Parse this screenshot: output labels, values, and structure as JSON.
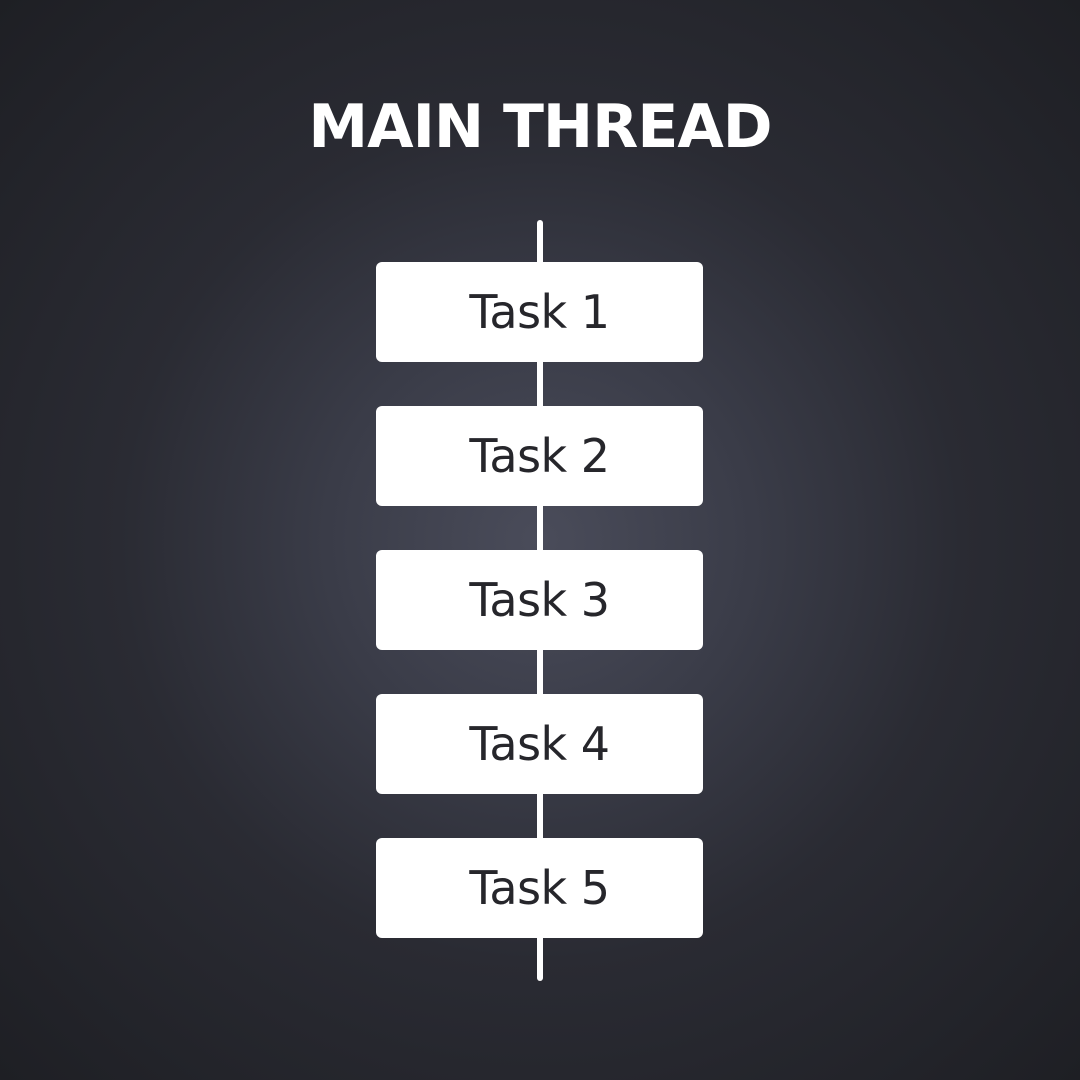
{
  "title": "MAIN THREAD",
  "tasks": [
    {
      "label": "Task 1"
    },
    {
      "label": "Task 2"
    },
    {
      "label": "Task 3"
    },
    {
      "label": "Task 4"
    },
    {
      "label": "Task 5"
    }
  ],
  "colors": {
    "background": "#2a2b33",
    "box": "#ffffff",
    "box_text": "#26262b",
    "line": "#ffffff",
    "title": "#ffffff"
  }
}
